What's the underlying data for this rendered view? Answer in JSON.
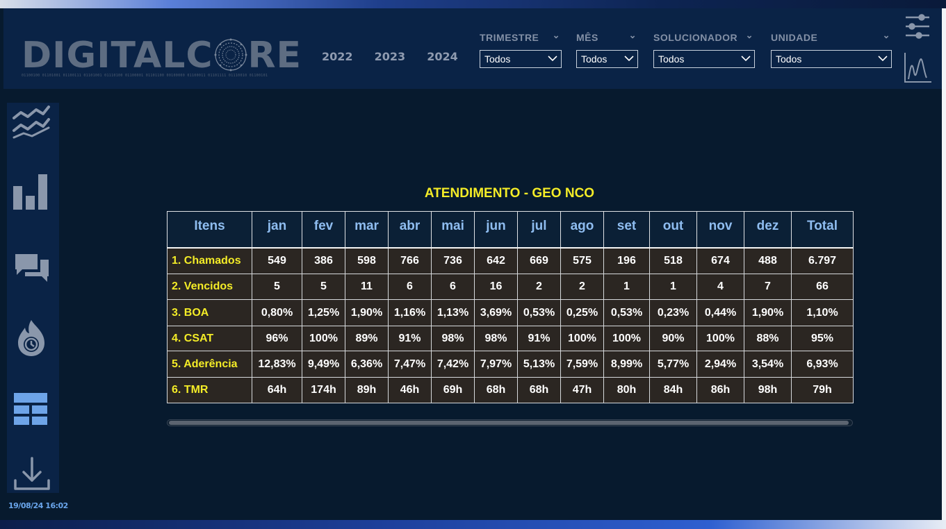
{
  "brand": {
    "logo_text_left": "DIGITALC",
    "logo_text_right": "RE",
    "logo_binary": "01100100 01101001 01100111 01101001 01110100 01100001 01101100 00100000 01100011 01101111 01110010 01100101"
  },
  "years": [
    "2022",
    "2023",
    "2024"
  ],
  "filters": [
    {
      "label": "TRIMESTRE",
      "value": "Todos"
    },
    {
      "label": "MÊS",
      "value": "Todos"
    },
    {
      "label": "SOLUCIONADOR",
      "value": "Todos"
    },
    {
      "label": "UNIDADE",
      "value": "Todos"
    }
  ],
  "sidebar": {
    "icons": [
      "trend-lines-icon",
      "bar-chart-icon",
      "chat-bubbles-icon",
      "fire-clock-icon",
      "grid-icon",
      "download-icon"
    ],
    "timestamp": "19/08/24 16:02"
  },
  "report": {
    "title": "ATENDIMENTO - GEO NCO",
    "columns": [
      "Itens",
      "jan",
      "fev",
      "mar",
      "abr",
      "mai",
      "jun",
      "jul",
      "ago",
      "set",
      "out",
      "nov",
      "dez",
      "Total"
    ],
    "rows": [
      {
        "item": "1. Chamados",
        "values": [
          "549",
          "386",
          "598",
          "766",
          "736",
          "642",
          "669",
          "575",
          "196",
          "518",
          "674",
          "488",
          "6.797"
        ]
      },
      {
        "item": "2. Vencidos",
        "values": [
          "5",
          "5",
          "11",
          "6",
          "6",
          "16",
          "2",
          "2",
          "1",
          "1",
          "4",
          "7",
          "66"
        ]
      },
      {
        "item": "3. BOA",
        "values": [
          "0,80%",
          "1,25%",
          "1,90%",
          "1,16%",
          "1,13%",
          "3,69%",
          "0,53%",
          "0,25%",
          "0,53%",
          "0,23%",
          "0,44%",
          "1,90%",
          "1,10%"
        ]
      },
      {
        "item": "4. CSAT",
        "values": [
          "96%",
          "100%",
          "89%",
          "91%",
          "98%",
          "98%",
          "91%",
          "100%",
          "100%",
          "90%",
          "100%",
          "88%",
          "95%"
        ]
      },
      {
        "item": "5. Aderência",
        "values": [
          "12,83%",
          "9,49%",
          "6,36%",
          "7,47%",
          "7,42%",
          "7,97%",
          "5,13%",
          "7,59%",
          "8,99%",
          "5,77%",
          "2,94%",
          "3,54%",
          "6,93%"
        ]
      },
      {
        "item": "6. TMR",
        "values": [
          "64h",
          "174h",
          "89h",
          "46h",
          "69h",
          "68h",
          "68h",
          "47h",
          "80h",
          "84h",
          "86h",
          "98h",
          "79h"
        ]
      }
    ]
  },
  "colors": {
    "background": "#071a2e",
    "panel": "#0a2346",
    "title_yellow": "#f4ec27",
    "header_blue": "#8fbdf0",
    "cell_bg": "#2b2622"
  }
}
